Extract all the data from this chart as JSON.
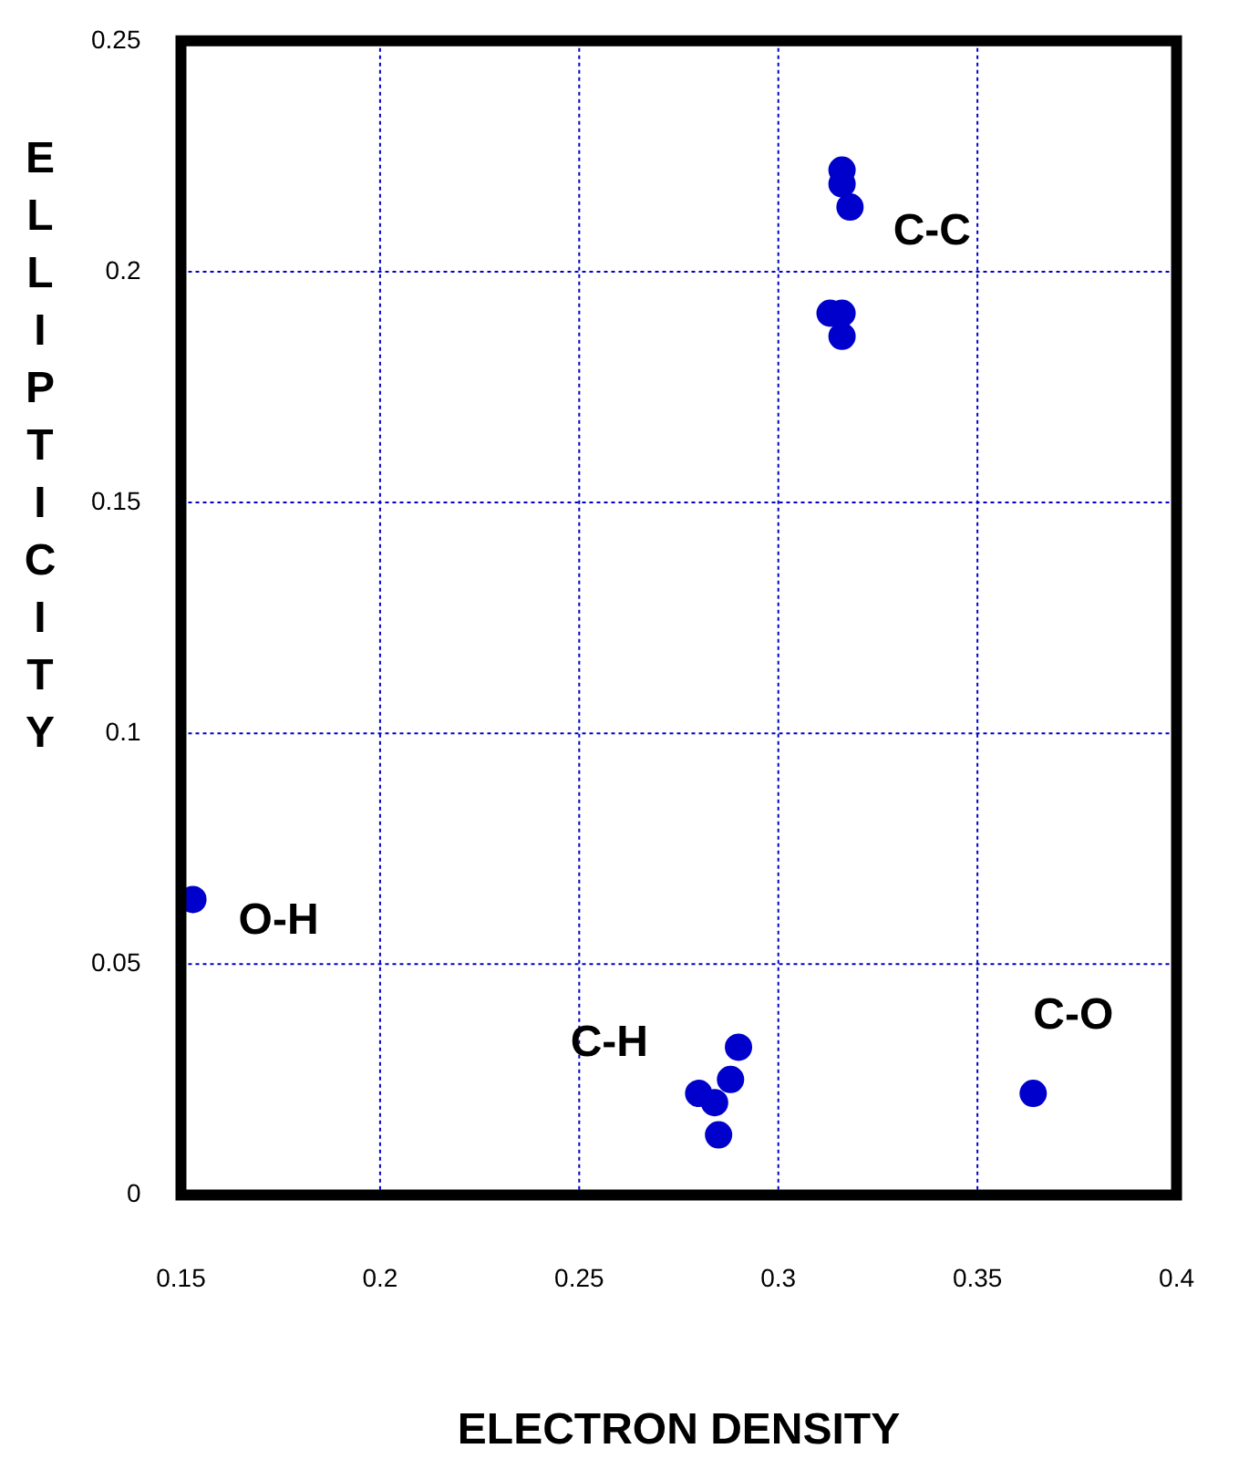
{
  "chart_data": {
    "type": "scatter",
    "xlabel": "ELECTRON DENSITY",
    "ylabel": "ELLIPTICITY",
    "xlim": [
      0.15,
      0.4
    ],
    "xticks": [
      0.15,
      0.2,
      0.25,
      0.3,
      0.35,
      0.4
    ],
    "ylim": [
      0,
      0.25
    ],
    "yticks": [
      0,
      0.05,
      0.1,
      0.15,
      0.2,
      0.25
    ],
    "grid": true,
    "legend": false,
    "marker": "circle",
    "series": [
      {
        "color": "#0000cc",
        "x": [
          0.316,
          0.316,
          0.318,
          0.313,
          0.316,
          0.316,
          0.29,
          0.288,
          0.28,
          0.284,
          0.285,
          0.153,
          0.364
        ],
        "values": [
          0.222,
          0.219,
          0.214,
          0.191,
          0.191,
          0.186,
          0.032,
          0.025,
          0.022,
          0.02,
          0.013,
          0.064,
          0.022
        ]
      }
    ],
    "annotations": [
      {
        "text": "C-C",
        "x": 0.318,
        "y": 0.214
      },
      {
        "text": "C-H",
        "x": 0.28,
        "y": 0.022
      },
      {
        "text": "O-H",
        "x": 0.153,
        "y": 0.064
      },
      {
        "text": "C-O",
        "x": 0.364,
        "y": 0.022
      }
    ]
  }
}
